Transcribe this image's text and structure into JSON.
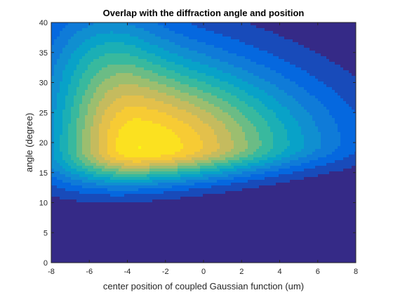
{
  "chart_data": {
    "type": "heatmap",
    "title": "Overlap with the diffraction angle and position",
    "xlabel": "center position of coupled Gaussian function (um)",
    "ylabel": "angle (degree)",
    "xlim": [
      -8,
      8
    ],
    "ylim": [
      0,
      40
    ],
    "xticks": [
      "-8",
      "-6",
      "-4",
      "-2",
      "0",
      "2",
      "4",
      "6",
      "8"
    ],
    "yticks": [
      "0",
      "5",
      "10",
      "15",
      "20",
      "25",
      "30",
      "35",
      "40"
    ],
    "colormap": "parula",
    "grid": false,
    "peak": {
      "x": -3.3,
      "y": 19,
      "value": 1.0
    },
    "field_shape": {
      "angle_center_near": 18.5,
      "angle_center_far": 20,
      "angle_width_near": 4.2,
      "angle_width_far_low": 3.0,
      "angle_width_far_high": 9.5,
      "position_falloff_left": 3.2,
      "position_falloff_right": 6.0,
      "secondary_lobe": {
        "x": -5.5,
        "y": 35,
        "sx": 2.2,
        "sy": 7,
        "amp": 0.18
      }
    },
    "colors": [
      "#352a87",
      "#0363e1",
      "#1485d4",
      "#06a7c6",
      "#38b99e",
      "#92bf73",
      "#d9ba56",
      "#fcce2e",
      "#f9fb0e"
    ]
  }
}
